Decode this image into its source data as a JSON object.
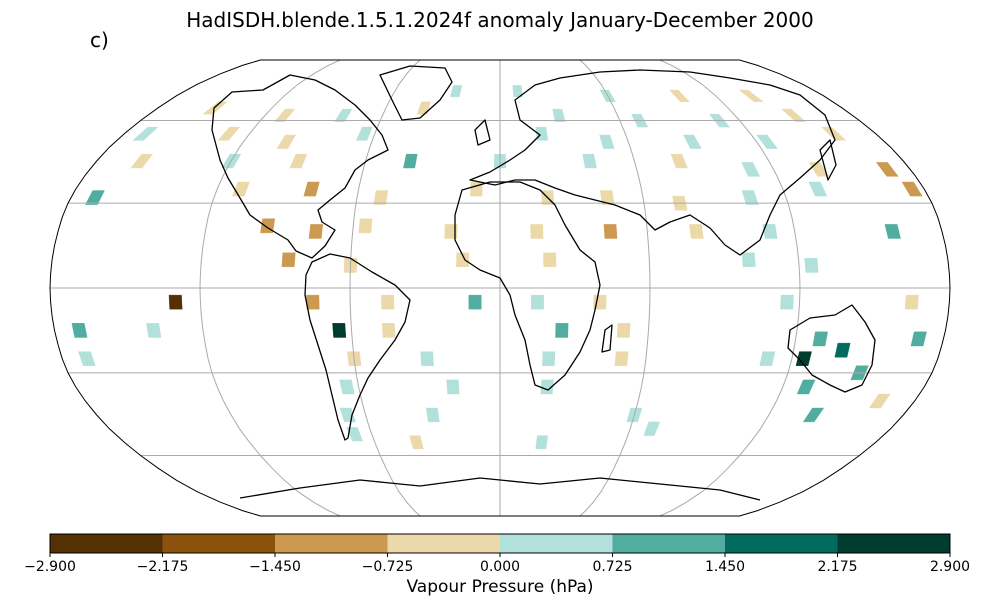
{
  "title": "HadISDH.blende.1.5.1.2024f anomaly January-December 2000",
  "panel_label": "c)",
  "colorbar": {
    "label": "Vapour Pressure (hPa)",
    "ticks": [
      "−2.900",
      "−2.175",
      "−1.450",
      "−0.725",
      "0.000",
      "0.725",
      "1.450",
      "2.175",
      "2.900"
    ],
    "min": -2.9,
    "max": 2.9,
    "colors": [
      "#543005",
      "#8c510a",
      "#cc9950",
      "#ecd9a9",
      "#b2e0db",
      "#50ada0",
      "#016b5f",
      "#003c30"
    ]
  },
  "projection": "Robinson",
  "gridlines": true,
  "chart_data": {
    "type": "heatmap",
    "title": "HadISDH.blende.1.5.1.2024f anomaly January-December 2000",
    "colorbar_label": "Vapour Pressure (hPa)",
    "value_range": [
      -2.9,
      2.9
    ],
    "levels": [
      -2.9,
      -2.175,
      -1.45,
      -0.725,
      0.0,
      0.725,
      1.45,
      2.175,
      2.9
    ],
    "cells": [
      {
        "lon": -25,
        "lat": 72,
        "value": 0.4
      },
      {
        "lon": 10,
        "lat": 72,
        "value": 0.5
      },
      {
        "lon": 60,
        "lat": 70,
        "value": 0.4
      },
      {
        "lon": 100,
        "lat": 70,
        "value": -0.4
      },
      {
        "lon": 140,
        "lat": 70,
        "value": -0.5
      },
      {
        "lon": -150,
        "lat": 65,
        "value": -0.4
      },
      {
        "lon": -110,
        "lat": 62,
        "value": -0.5
      },
      {
        "lon": -80,
        "lat": 62,
        "value": 0.3
      },
      {
        "lon": -40,
        "lat": 65,
        "value": -0.4
      },
      {
        "lon": 30,
        "lat": 62,
        "value": 0.5
      },
      {
        "lon": 70,
        "lat": 60,
        "value": 0.6
      },
      {
        "lon": 110,
        "lat": 60,
        "value": 0.4
      },
      {
        "lon": 150,
        "lat": 62,
        "value": -0.5
      },
      {
        "lon": -170,
        "lat": 55,
        "value": 0.4
      },
      {
        "lon": -130,
        "lat": 55,
        "value": -0.4
      },
      {
        "lon": -100,
        "lat": 52,
        "value": -0.5
      },
      {
        "lon": -65,
        "lat": 55,
        "value": 0.4
      },
      {
        "lon": 20,
        "lat": 55,
        "value": 0.5
      },
      {
        "lon": 50,
        "lat": 52,
        "value": 0.6
      },
      {
        "lon": 90,
        "lat": 52,
        "value": 0.5
      },
      {
        "lon": 125,
        "lat": 52,
        "value": 0.4
      },
      {
        "lon": 160,
        "lat": 55,
        "value": -0.4
      },
      {
        "lon": -160,
        "lat": 45,
        "value": -0.4
      },
      {
        "lon": -120,
        "lat": 45,
        "value": 0.4
      },
      {
        "lon": -90,
        "lat": 45,
        "value": -0.5
      },
      {
        "lon": -40,
        "lat": 45,
        "value": 1.0
      },
      {
        "lon": 0,
        "lat": 45,
        "value": 0.5
      },
      {
        "lon": 40,
        "lat": 45,
        "value": 0.5
      },
      {
        "lon": 80,
        "lat": 45,
        "value": -0.4
      },
      {
        "lon": 110,
        "lat": 42,
        "value": 0.6
      },
      {
        "lon": 140,
        "lat": 42,
        "value": -0.5
      },
      {
        "lon": 170,
        "lat": 42,
        "value": -1.0
      },
      {
        "lon": -170,
        "lat": 32,
        "value": 1.0
      },
      {
        "lon": -110,
        "lat": 35,
        "value": -0.6
      },
      {
        "lon": -80,
        "lat": 35,
        "value": -1.0
      },
      {
        "lon": -50,
        "lat": 32,
        "value": -0.4
      },
      {
        "lon": -10,
        "lat": 35,
        "value": -0.5
      },
      {
        "lon": 20,
        "lat": 32,
        "value": -0.6
      },
      {
        "lon": 45,
        "lat": 32,
        "value": -0.5
      },
      {
        "lon": 75,
        "lat": 30,
        "value": -0.4
      },
      {
        "lon": 105,
        "lat": 32,
        "value": 0.5
      },
      {
        "lon": 135,
        "lat": 35,
        "value": 0.6
      },
      {
        "lon": 175,
        "lat": 35,
        "value": -1.0
      },
      {
        "lon": -95,
        "lat": 22,
        "value": -1.2
      },
      {
        "lon": -75,
        "lat": 20,
        "value": -1.0
      },
      {
        "lon": -55,
        "lat": 22,
        "value": -0.4
      },
      {
        "lon": -20,
        "lat": 20,
        "value": -0.5
      },
      {
        "lon": 15,
        "lat": 20,
        "value": -0.6
      },
      {
        "lon": 45,
        "lat": 20,
        "value": -1.0
      },
      {
        "lon": 80,
        "lat": 20,
        "value": -0.4
      },
      {
        "lon": 110,
        "lat": 20,
        "value": 0.4
      },
      {
        "lon": 160,
        "lat": 20,
        "value": 0.9
      },
      {
        "lon": -85,
        "lat": 10,
        "value": -1.1
      },
      {
        "lon": -60,
        "lat": 8,
        "value": -0.5
      },
      {
        "lon": -15,
        "lat": 10,
        "value": -0.4
      },
      {
        "lon": 20,
        "lat": 10,
        "value": -0.5
      },
      {
        "lon": 100,
        "lat": 10,
        "value": 0.5
      },
      {
        "lon": 125,
        "lat": 8,
        "value": 0.6
      },
      {
        "lon": -130,
        "lat": -5,
        "value": -2.9
      },
      {
        "lon": -75,
        "lat": -5,
        "value": -1.0
      },
      {
        "lon": -45,
        "lat": -5,
        "value": -0.5
      },
      {
        "lon": -10,
        "lat": -5,
        "value": 1.0
      },
      {
        "lon": 15,
        "lat": -5,
        "value": 0.5
      },
      {
        "lon": 40,
        "lat": -5,
        "value": -0.4
      },
      {
        "lon": 115,
        "lat": -5,
        "value": 0.6
      },
      {
        "lon": 165,
        "lat": -5,
        "value": -0.5
      },
      {
        "lon": -170,
        "lat": -15,
        "value": 0.8
      },
      {
        "lon": -140,
        "lat": -15,
        "value": 0.5
      },
      {
        "lon": -65,
        "lat": -15,
        "value": 2.5
      },
      {
        "lon": -45,
        "lat": -15,
        "value": -0.5
      },
      {
        "lon": 25,
        "lat": -15,
        "value": 1.2
      },
      {
        "lon": 50,
        "lat": -15,
        "value": -0.5
      },
      {
        "lon": 130,
        "lat": -18,
        "value": 1.3
      },
      {
        "lon": 140,
        "lat": -22,
        "value": 2.0
      },
      {
        "lon": 125,
        "lat": -25,
        "value": 2.6
      },
      {
        "lon": 170,
        "lat": -18,
        "value": 0.9
      },
      {
        "lon": -170,
        "lat": -25,
        "value": 0.5
      },
      {
        "lon": -60,
        "lat": -25,
        "value": -0.5
      },
      {
        "lon": -30,
        "lat": -25,
        "value": 0.6
      },
      {
        "lon": 20,
        "lat": -25,
        "value": 0.5
      },
      {
        "lon": 50,
        "lat": -25,
        "value": -0.5
      },
      {
        "lon": 110,
        "lat": -25,
        "value": 0.6
      },
      {
        "lon": 150,
        "lat": -30,
        "value": 1.1
      },
      {
        "lon": -65,
        "lat": -35,
        "value": 0.5
      },
      {
        "lon": -20,
        "lat": -35,
        "value": 0.4
      },
      {
        "lon": 20,
        "lat": -35,
        "value": 0.5
      },
      {
        "lon": 130,
        "lat": -35,
        "value": 1.0
      },
      {
        "lon": 165,
        "lat": -40,
        "value": -0.5
      },
      {
        "lon": -68,
        "lat": -45,
        "value": 0.5
      },
      {
        "lon": -30,
        "lat": -45,
        "value": 0.4
      },
      {
        "lon": 60,
        "lat": -45,
        "value": 0.4
      },
      {
        "lon": 140,
        "lat": -45,
        "value": 1.0
      },
      {
        "lon": -68,
        "lat": -52,
        "value": 0.5
      },
      {
        "lon": -40,
        "lat": -55,
        "value": -0.4
      },
      {
        "lon": 20,
        "lat": -55,
        "value": 0.5
      },
      {
        "lon": 70,
        "lat": -50,
        "value": 0.4
      }
    ]
  }
}
